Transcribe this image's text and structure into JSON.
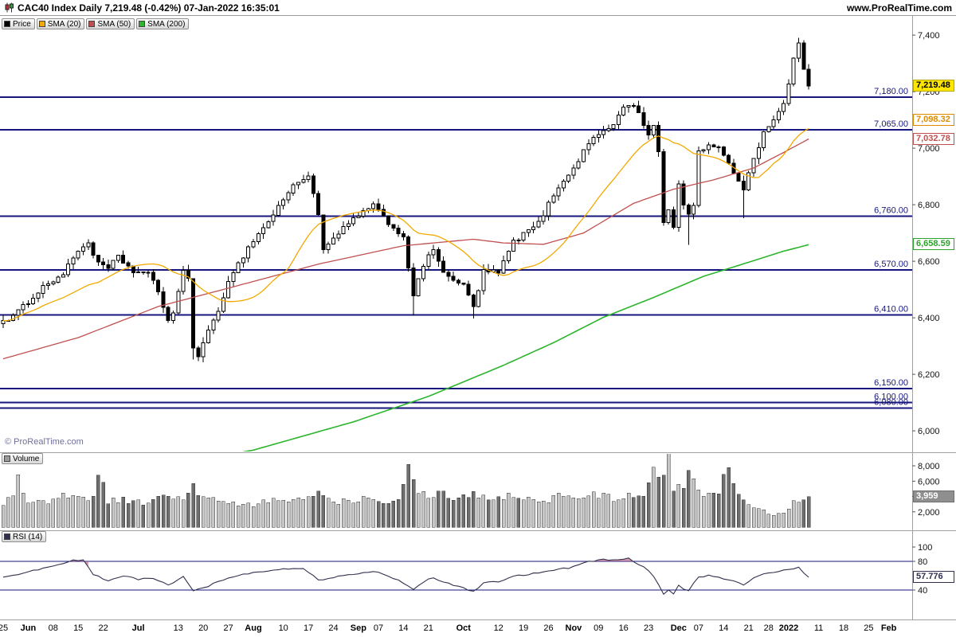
{
  "header": {
    "title": "CAC40 Index Daily 7,219.48 (-0.42%) 07-Jan-2022 16:35:01",
    "website": "www.ProRealTime.com"
  },
  "legend": {
    "price": {
      "label": "Price",
      "color": "#000000"
    },
    "sma20": {
      "label": "SMA (20)",
      "color": "#f2a900"
    },
    "sma50": {
      "label": "SMA (50)",
      "color": "#c05050"
    },
    "sma200": {
      "label": "SMA (200)",
      "color": "#2db52d"
    }
  },
  "panels": {
    "volume_label": "Volume",
    "volume_color": "#9a9a9a",
    "rsi_label": "RSI (14)",
    "rsi_color": "#30304e",
    "copyright": "© ProRealTime.com"
  },
  "badges": {
    "last_price": {
      "label": "7,219.48",
      "value": 7219.48,
      "panel": "price",
      "bg": "#ffe600",
      "fg": "#000000",
      "border": "#b9a500"
    },
    "sma20_value": {
      "label": "7,098.32",
      "value": 7098.32,
      "panel": "price",
      "bg": "#ffffff",
      "fg": "#e08a00",
      "border": "#e08a00"
    },
    "sma50_value": {
      "label": "7,032.78",
      "value": 7032.78,
      "panel": "price",
      "bg": "#ffffff",
      "fg": "#c05050",
      "border": "#c05050"
    },
    "sma200_value": {
      "label": "6,658.59",
      "value": 6658.59,
      "panel": "price",
      "bg": "#ffffff",
      "fg": "#2da52d",
      "border": "#2da52d"
    },
    "volume_value": {
      "label": "3,959",
      "value": 3959,
      "panel": "volume",
      "bg": "#8f8f8f",
      "fg": "#ffffff",
      "border": "#6e6e6e"
    },
    "rsi_value": {
      "label": "57.776",
      "value": 57.776,
      "panel": "rsi",
      "bg": "#ffffff",
      "fg": "#30304e",
      "border": "#30304e"
    }
  },
  "chart_data": {
    "type": "candlestick",
    "symbol": "CAC40 Index",
    "timeframe": "Daily",
    "last": 7219.48,
    "change_pct": -0.42,
    "as_of": "07-Jan-2022 16:35:01",
    "bars": 162,
    "colors": {
      "level": "#16167e",
      "candle_up": "#ffffff",
      "candle_down": "#000000",
      "sma20": "#f2a900",
      "sma50": "#c05050",
      "sma200": "#2db52d",
      "rsi_line": "#30304e",
      "rsi_fill": "#b75c7a",
      "vol_up": "#c6c6c6",
      "vol_down": "#6e6e6e"
    },
    "price_axis": {
      "min": 5930,
      "max": 7468,
      "ticks": [
        {
          "v": 7400,
          "t": "7,400"
        },
        {
          "v": 7200,
          "t": "7,200"
        },
        {
          "v": 7000,
          "t": "7,000"
        },
        {
          "v": 6800,
          "t": "6,800"
        },
        {
          "v": 6600,
          "t": "6,600"
        },
        {
          "v": 6400,
          "t": "6,400"
        },
        {
          "v": 6200,
          "t": "6,200"
        },
        {
          "v": 6000,
          "t": "6,000"
        }
      ]
    },
    "volume_axis": {
      "ticks": [
        {
          "v": 8000,
          "t": "8,000"
        },
        {
          "v": 6000,
          "t": "6,000"
        },
        {
          "v": 4000,
          "t": "4,000"
        },
        {
          "v": 2000,
          "t": "2,000"
        }
      ]
    },
    "rsi_axis": {
      "ticks": [
        {
          "v": 100,
          "t": "100"
        },
        {
          "v": 80,
          "t": "80"
        },
        {
          "v": 40,
          "t": "40"
        }
      ],
      "levels": [
        80,
        40
      ],
      "overbought_threshold": 80
    },
    "levels": [
      {
        "value": 7180,
        "label": "7,180.00"
      },
      {
        "value": 7065,
        "label": "7,065.00"
      },
      {
        "value": 6760,
        "label": "6,760.00"
      },
      {
        "value": 6570,
        "label": "6,570.00"
      },
      {
        "value": 6410,
        "label": "6,410.00"
      },
      {
        "value": 6150,
        "label": "6,150.00"
      },
      {
        "value": 6100,
        "label": "6,100.00"
      },
      {
        "value": 6080,
        "label": "6,080.00"
      }
    ],
    "close_anchors": [
      [
        0,
        6390
      ],
      [
        2,
        6405
      ],
      [
        4,
        6440
      ],
      [
        8,
        6510
      ],
      [
        12,
        6555
      ],
      [
        15,
        6640
      ],
      [
        17,
        6665
      ],
      [
        19,
        6590
      ],
      [
        21,
        6575
      ],
      [
        23,
        6615
      ],
      [
        26,
        6565
      ],
      [
        29,
        6555
      ],
      [
        31,
        6495
      ],
      [
        33,
        6390
      ],
      [
        34,
        6420
      ],
      [
        36,
        6560
      ],
      [
        37,
        6540
      ],
      [
        38,
        6295
      ],
      [
        39,
        6270
      ],
      [
        41,
        6350
      ],
      [
        43,
        6420
      ],
      [
        45,
        6535
      ],
      [
        47,
        6590
      ],
      [
        50,
        6675
      ],
      [
        53,
        6740
      ],
      [
        56,
        6820
      ],
      [
        58,
        6865
      ],
      [
        60,
        6895
      ],
      [
        61,
        6905
      ],
      [
        63,
        6770
      ],
      [
        64,
        6635
      ],
      [
        66,
        6680
      ],
      [
        68,
        6715
      ],
      [
        71,
        6765
      ],
      [
        74,
        6795
      ],
      [
        76,
        6760
      ],
      [
        78,
        6715
      ],
      [
        80,
        6690
      ],
      [
        82,
        6475
      ],
      [
        84,
        6585
      ],
      [
        86,
        6645
      ],
      [
        88,
        6565
      ],
      [
        90,
        6525
      ],
      [
        92,
        6520
      ],
      [
        94,
        6435
      ],
      [
        96,
        6565
      ],
      [
        99,
        6560
      ],
      [
        102,
        6670
      ],
      [
        104,
        6695
      ],
      [
        107,
        6735
      ],
      [
        110,
        6835
      ],
      [
        112,
        6890
      ],
      [
        114,
        6925
      ],
      [
        116,
        6990
      ],
      [
        118,
        7045
      ],
      [
        120,
        7055
      ],
      [
        122,
        7085
      ],
      [
        124,
        7145
      ],
      [
        126,
        7155
      ],
      [
        127,
        7120
      ],
      [
        129,
        7045
      ],
      [
        130,
        7080
      ],
      [
        131,
        6980
      ],
      [
        132,
        6740
      ],
      [
        133,
        6785
      ],
      [
        134,
        6720
      ],
      [
        135,
        6880
      ],
      [
        136,
        6795
      ],
      [
        137,
        6765
      ],
      [
        138,
        6805
      ],
      [
        139,
        6985
      ],
      [
        141,
        7015
      ],
      [
        143,
        7000
      ],
      [
        145,
        6940
      ],
      [
        147,
        6890
      ],
      [
        148,
        6855
      ],
      [
        150,
        6965
      ],
      [
        152,
        7055
      ],
      [
        154,
        7105
      ],
      [
        156,
        7155
      ],
      [
        157,
        7225
      ],
      [
        158,
        7315
      ],
      [
        159,
        7375
      ],
      [
        160,
        7285
      ],
      [
        161,
        7219.48
      ]
    ],
    "wick_overrides": [
      {
        "i": 38,
        "low": 6252
      },
      {
        "i": 82,
        "low": 6408
      },
      {
        "i": 94,
        "low": 6398
      },
      {
        "i": 137,
        "low": 6658
      },
      {
        "i": 148,
        "low": 6752
      },
      {
        "i": 159,
        "high": 7390
      }
    ],
    "sma50_anchors": [
      [
        0,
        6255
      ],
      [
        15,
        6330
      ],
      [
        31,
        6440
      ],
      [
        45,
        6505
      ],
      [
        63,
        6590
      ],
      [
        80,
        6655
      ],
      [
        94,
        6678
      ],
      [
        100,
        6665
      ],
      [
        108,
        6660
      ],
      [
        116,
        6700
      ],
      [
        126,
        6805
      ],
      [
        134,
        6855
      ],
      [
        142,
        6888
      ],
      [
        150,
        6930
      ],
      [
        156,
        6985
      ],
      [
        161,
        7032.78
      ]
    ],
    "sma200_anchors": [
      [
        0,
        5775
      ],
      [
        30,
        5868
      ],
      [
        50,
        5932
      ],
      [
        70,
        6032
      ],
      [
        85,
        6122
      ],
      [
        100,
        6232
      ],
      [
        110,
        6312
      ],
      [
        120,
        6402
      ],
      [
        130,
        6472
      ],
      [
        140,
        6547
      ],
      [
        150,
        6602
      ],
      [
        156,
        6636
      ],
      [
        161,
        6658.59
      ]
    ],
    "volume_anchors": [
      [
        0,
        3200
      ],
      [
        2,
        4500
      ],
      [
        3,
        6800
      ],
      [
        5,
        3000
      ],
      [
        8,
        3300
      ],
      [
        10,
        3600
      ],
      [
        12,
        4200
      ],
      [
        15,
        3800
      ],
      [
        18,
        4000
      ],
      [
        19,
        7300
      ],
      [
        21,
        3500
      ],
      [
        24,
        3600
      ],
      [
        27,
        3200
      ],
      [
        30,
        3500
      ],
      [
        33,
        4200
      ],
      [
        36,
        3400
      ],
      [
        38,
        5200
      ],
      [
        40,
        4000
      ],
      [
        43,
        3300
      ],
      [
        46,
        3000
      ],
      [
        49,
        2800
      ],
      [
        52,
        3200
      ],
      [
        55,
        3500
      ],
      [
        58,
        3800
      ],
      [
        60,
        3400
      ],
      [
        62,
        4600
      ],
      [
        64,
        4200
      ],
      [
        67,
        3300
      ],
      [
        70,
        3600
      ],
      [
        73,
        4000
      ],
      [
        76,
        3400
      ],
      [
        79,
        3800
      ],
      [
        81,
        8700
      ],
      [
        83,
        4500
      ],
      [
        85,
        4200
      ],
      [
        87,
        4600
      ],
      [
        89,
        4100
      ],
      [
        91,
        3800
      ],
      [
        94,
        4400
      ],
      [
        96,
        4100
      ],
      [
        98,
        3700
      ],
      [
        100,
        3900
      ],
      [
        102,
        4300
      ],
      [
        104,
        3600
      ],
      [
        106,
        3900
      ],
      [
        108,
        3400
      ],
      [
        110,
        3800
      ],
      [
        112,
        4200
      ],
      [
        114,
        4100
      ],
      [
        116,
        3900
      ],
      [
        118,
        4300
      ],
      [
        120,
        4000
      ],
      [
        122,
        3700
      ],
      [
        124,
        4100
      ],
      [
        126,
        4400
      ],
      [
        128,
        3900
      ],
      [
        130,
        8900
      ],
      [
        131,
        6500
      ],
      [
        132,
        7000
      ],
      [
        133,
        9200
      ],
      [
        134,
        5200
      ],
      [
        135,
        5600
      ],
      [
        136,
        4800
      ],
      [
        137,
        6900
      ],
      [
        139,
        4700
      ],
      [
        141,
        4300
      ],
      [
        143,
        4600
      ],
      [
        145,
        8700
      ],
      [
        147,
        4300
      ],
      [
        148,
        3900
      ],
      [
        150,
        2600
      ],
      [
        152,
        2200
      ],
      [
        154,
        1600
      ],
      [
        156,
        1900
      ],
      [
        157,
        2600
      ],
      [
        158,
        3300
      ],
      [
        159,
        3600
      ],
      [
        160,
        3900
      ],
      [
        161,
        3959
      ]
    ],
    "rsi_anchors": [
      [
        0,
        58
      ],
      [
        4,
        64
      ],
      [
        8,
        70
      ],
      [
        12,
        78
      ],
      [
        14,
        82
      ],
      [
        16,
        81
      ],
      [
        18,
        62
      ],
      [
        21,
        52
      ],
      [
        24,
        60
      ],
      [
        27,
        55
      ],
      [
        30,
        57
      ],
      [
        33,
        46
      ],
      [
        36,
        58
      ],
      [
        38,
        40
      ],
      [
        41,
        46
      ],
      [
        44,
        54
      ],
      [
        48,
        62
      ],
      [
        52,
        66
      ],
      [
        56,
        70
      ],
      [
        60,
        71
      ],
      [
        63,
        54
      ],
      [
        66,
        58
      ],
      [
        69,
        62
      ],
      [
        72,
        64
      ],
      [
        75,
        65
      ],
      [
        78,
        57
      ],
      [
        82,
        42
      ],
      [
        84,
        52
      ],
      [
        86,
        57
      ],
      [
        88,
        50
      ],
      [
        91,
        46
      ],
      [
        94,
        38
      ],
      [
        96,
        50
      ],
      [
        99,
        52
      ],
      [
        102,
        60
      ],
      [
        105,
        62
      ],
      [
        108,
        65
      ],
      [
        111,
        69
      ],
      [
        114,
        72
      ],
      [
        116,
        78
      ],
      [
        119,
        82
      ],
      [
        122,
        83
      ],
      [
        125,
        84
      ],
      [
        127,
        75
      ],
      [
        129,
        68
      ],
      [
        131,
        48
      ],
      [
        132,
        35
      ],
      [
        133,
        40
      ],
      [
        134,
        35
      ],
      [
        135,
        47
      ],
      [
        136,
        42
      ],
      [
        137,
        40
      ],
      [
        139,
        57
      ],
      [
        141,
        60
      ],
      [
        143,
        59
      ],
      [
        145,
        54
      ],
      [
        147,
        50
      ],
      [
        148,
        47
      ],
      [
        150,
        57
      ],
      [
        152,
        62
      ],
      [
        154,
        64
      ],
      [
        156,
        67
      ],
      [
        158,
        70
      ],
      [
        159,
        72
      ],
      [
        160,
        64
      ],
      [
        161,
        57.776
      ]
    ],
    "x_labels": [
      {
        "t": "25",
        "i": 0
      },
      {
        "t": "Jun",
        "i": 5,
        "bold": true
      },
      {
        "t": "08",
        "i": 10
      },
      {
        "t": "15",
        "i": 15
      },
      {
        "t": "22",
        "i": 20
      },
      {
        "t": "Jul",
        "i": 27,
        "bold": true
      },
      {
        "t": "13",
        "i": 35
      },
      {
        "t": "20",
        "i": 40
      },
      {
        "t": "27",
        "i": 45
      },
      {
        "t": "Aug",
        "i": 50,
        "bold": true
      },
      {
        "t": "10",
        "i": 56
      },
      {
        "t": "17",
        "i": 61
      },
      {
        "t": "24",
        "i": 66
      },
      {
        "t": "Sep",
        "i": 71,
        "bold": true
      },
      {
        "t": "07",
        "i": 75
      },
      {
        "t": "14",
        "i": 80
      },
      {
        "t": "21",
        "i": 85
      },
      {
        "t": "Oct",
        "i": 92,
        "bold": true
      },
      {
        "t": "12",
        "i": 99
      },
      {
        "t": "19",
        "i": 104
      },
      {
        "t": "26",
        "i": 109
      },
      {
        "t": "Nov",
        "i": 114,
        "bold": true
      },
      {
        "t": "09",
        "i": 119
      },
      {
        "t": "16",
        "i": 124
      },
      {
        "t": "23",
        "i": 129
      },
      {
        "t": "Dec",
        "i": 135,
        "bold": true
      },
      {
        "t": "07",
        "i": 139
      },
      {
        "t": "14",
        "i": 144
      },
      {
        "t": "21",
        "i": 149
      },
      {
        "t": "28",
        "i": 153
      },
      {
        "t": "2022",
        "i": 157,
        "bold": true
      },
      {
        "t": "11",
        "i": 163
      },
      {
        "t": "18",
        "i": 168
      },
      {
        "t": "25",
        "i": 173
      },
      {
        "t": "Feb",
        "i": 177,
        "bold": true
      }
    ]
  }
}
